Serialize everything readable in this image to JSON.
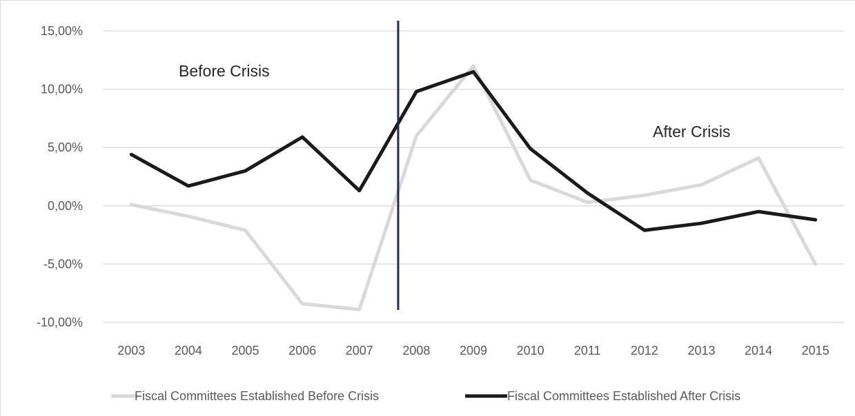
{
  "chart_data": {
    "type": "line",
    "title": "",
    "xlabel": "",
    "ylabel": "",
    "categories": [
      "2003",
      "2004",
      "2005",
      "2006",
      "2007",
      "2008",
      "2009",
      "2010",
      "2011",
      "2012",
      "2013",
      "2014",
      "2015"
    ],
    "ylim": [
      -10,
      15
    ],
    "yticks": [
      15,
      10,
      5,
      0,
      -5,
      -10
    ],
    "ytick_labels": [
      "15,00%",
      "10,00%",
      "5,00%",
      "0,00%",
      "-5,00%",
      "-10,00%"
    ],
    "unit": "%",
    "grid": true,
    "legend_position": "bottom",
    "series": [
      {
        "name": "Fiscal Committees Established Before Crisis",
        "color": "#d9d9d9",
        "values": [
          0.1,
          -0.9,
          -2.1,
          -8.4,
          -8.9,
          6.0,
          12.0,
          2.2,
          0.3,
          0.9,
          1.8,
          4.1,
          -5.0
        ]
      },
      {
        "name": "Fiscal Committees Established After Crisis",
        "color": "#1a1a1a",
        "values": [
          4.4,
          1.7,
          3.0,
          5.9,
          1.3,
          9.8,
          11.5,
          4.9,
          1.1,
          -2.1,
          -1.5,
          -0.5,
          -1.2
        ]
      }
    ],
    "annotations": [
      "Before Crisis",
      "After Crisis"
    ],
    "divider": {
      "between": [
        "2007",
        "2008"
      ],
      "color": "#1f2a5a"
    }
  }
}
